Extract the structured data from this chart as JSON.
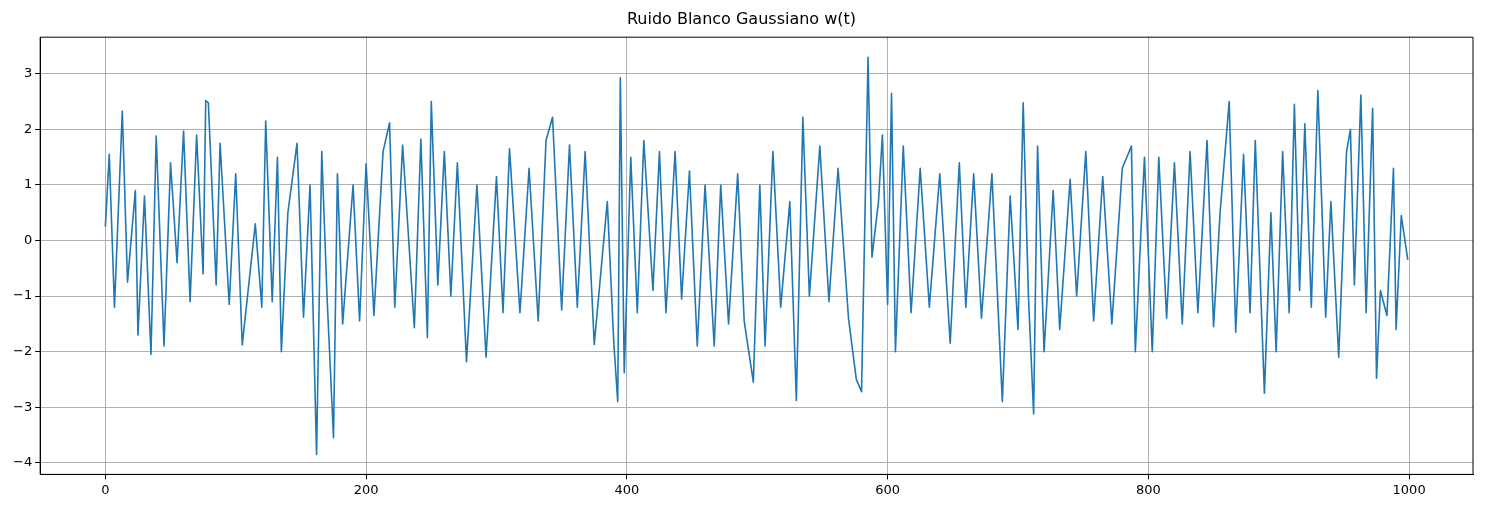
{
  "chart_data": {
    "type": "line",
    "title": "Ruido Blanco Gaussiano w(t)",
    "xlim": [
      -50,
      1049
    ],
    "xticks": [
      0,
      200,
      400,
      600,
      800,
      1000
    ],
    "ylim": [
      -4.21,
      3.66
    ],
    "yticks": [
      -4,
      -3,
      -2,
      -1,
      0,
      1,
      2,
      3
    ],
    "grid": true,
    "marker": "none",
    "line_style": "solid",
    "series": [
      {
        "color": "#1f77b4",
        "x": [
          0,
          3,
          7,
          13,
          17,
          23,
          25,
          30,
          35,
          39,
          45,
          50,
          55,
          60,
          65,
          70,
          75,
          77,
          79,
          85,
          88,
          95,
          100,
          105,
          115,
          120,
          123,
          128,
          132,
          135,
          140,
          147,
          152,
          157,
          162,
          166,
          170,
          175,
          178,
          182,
          190,
          195,
          200,
          206,
          213,
          218,
          222,
          228,
          237,
          242,
          247,
          250,
          255,
          260,
          265,
          270,
          277,
          285,
          292,
          300,
          305,
          310,
          318,
          325,
          332,
          338,
          343,
          350,
          356,
          362,
          368,
          375,
          385,
          390,
          393,
          395,
          398,
          403,
          408,
          413,
          420,
          425,
          430,
          437,
          442,
          448,
          454,
          460,
          467,
          472,
          478,
          485,
          490,
          497,
          502,
          506,
          512,
          518,
          525,
          530,
          535,
          540,
          548,
          555,
          562,
          570,
          576,
          580,
          585,
          588,
          593,
          596,
          600,
          603,
          606,
          612,
          618,
          625,
          632,
          640,
          648,
          655,
          660,
          666,
          672,
          680,
          688,
          694,
          700,
          704,
          708,
          712,
          715,
          720,
          727,
          732,
          740,
          745,
          752,
          758,
          765,
          772,
          780,
          787,
          790,
          797,
          803,
          808,
          814,
          820,
          826,
          832,
          838,
          845,
          850,
          855,
          862,
          867,
          873,
          878,
          882,
          889,
          894,
          898,
          903,
          908,
          912,
          916,
          920,
          925,
          930,
          936,
          940,
          946,
          952,
          955,
          958,
          963,
          967,
          972,
          975,
          978,
          983,
          988,
          990,
          994,
          999
        ],
        "values": [
          0.25,
          1.55,
          -1.2,
          2.33,
          -0.75,
          0.9,
          -1.7,
          0.8,
          -2.05,
          1.88,
          -1.9,
          1.4,
          -0.4,
          1.97,
          -1.1,
          1.9,
          -0.6,
          2.52,
          2.48,
          -0.8,
          1.75,
          -1.15,
          1.2,
          -1.88,
          0.3,
          -1.2,
          2.15,
          -1.1,
          1.5,
          -2.0,
          0.5,
          1.75,
          -1.38,
          1.0,
          -3.85,
          1.6,
          -1.0,
          -3.55,
          1.2,
          -1.5,
          1.0,
          -1.45,
          1.38,
          -1.35,
          1.6,
          2.12,
          -1.2,
          1.72,
          -1.57,
          1.82,
          -1.75,
          2.5,
          -0.8,
          1.6,
          -1.0,
          1.4,
          -2.18,
          1.0,
          -2.1,
          1.15,
          -1.3,
          1.65,
          -1.3,
          1.3,
          -1.45,
          1.8,
          2.22,
          -1.25,
          1.72,
          -1.2,
          1.6,
          -1.87,
          0.7,
          -1.85,
          -2.9,
          2.93,
          -2.38,
          1.5,
          -1.3,
          1.8,
          -0.9,
          1.6,
          -1.3,
          1.6,
          -1.05,
          1.25,
          -1.9,
          1.0,
          -1.9,
          1.0,
          -1.5,
          1.2,
          -1.45,
          -2.55,
          1.0,
          -1.9,
          1.6,
          -1.2,
          0.7,
          -2.88,
          2.22,
          -1.0,
          1.7,
          -1.1,
          1.3,
          -1.4,
          -2.5,
          -2.72,
          3.3,
          -0.3,
          0.7,
          1.9,
          -1.15,
          2.65,
          -2.0,
          1.7,
          -1.3,
          1.3,
          -1.2,
          1.2,
          -1.85,
          1.4,
          -1.2,
          1.2,
          -1.4,
          1.2,
          -2.9,
          0.8,
          -1.6,
          2.48,
          -1.0,
          -3.12,
          1.7,
          -2.0,
          0.9,
          -1.6,
          1.1,
          -1.0,
          1.6,
          -1.45,
          1.15,
          -1.5,
          1.3,
          1.7,
          -2.0,
          1.5,
          -2.0,
          1.5,
          -1.4,
          1.4,
          -1.5,
          1.6,
          -1.3,
          1.8,
          -1.55,
          0.5,
          2.5,
          -1.65,
          1.55,
          -1.3,
          1.8,
          -2.75,
          0.5,
          -2.0,
          1.6,
          -1.3,
          2.45,
          -0.9,
          2.1,
          -1.2,
          2.7,
          -1.38,
          0.7,
          -2.1,
          1.6,
          2.0,
          -0.8,
          2.62,
          -1.3,
          2.38,
          -2.48,
          -0.9,
          -1.35,
          1.3,
          -1.6,
          0.45,
          -0.35
        ]
      }
    ]
  }
}
